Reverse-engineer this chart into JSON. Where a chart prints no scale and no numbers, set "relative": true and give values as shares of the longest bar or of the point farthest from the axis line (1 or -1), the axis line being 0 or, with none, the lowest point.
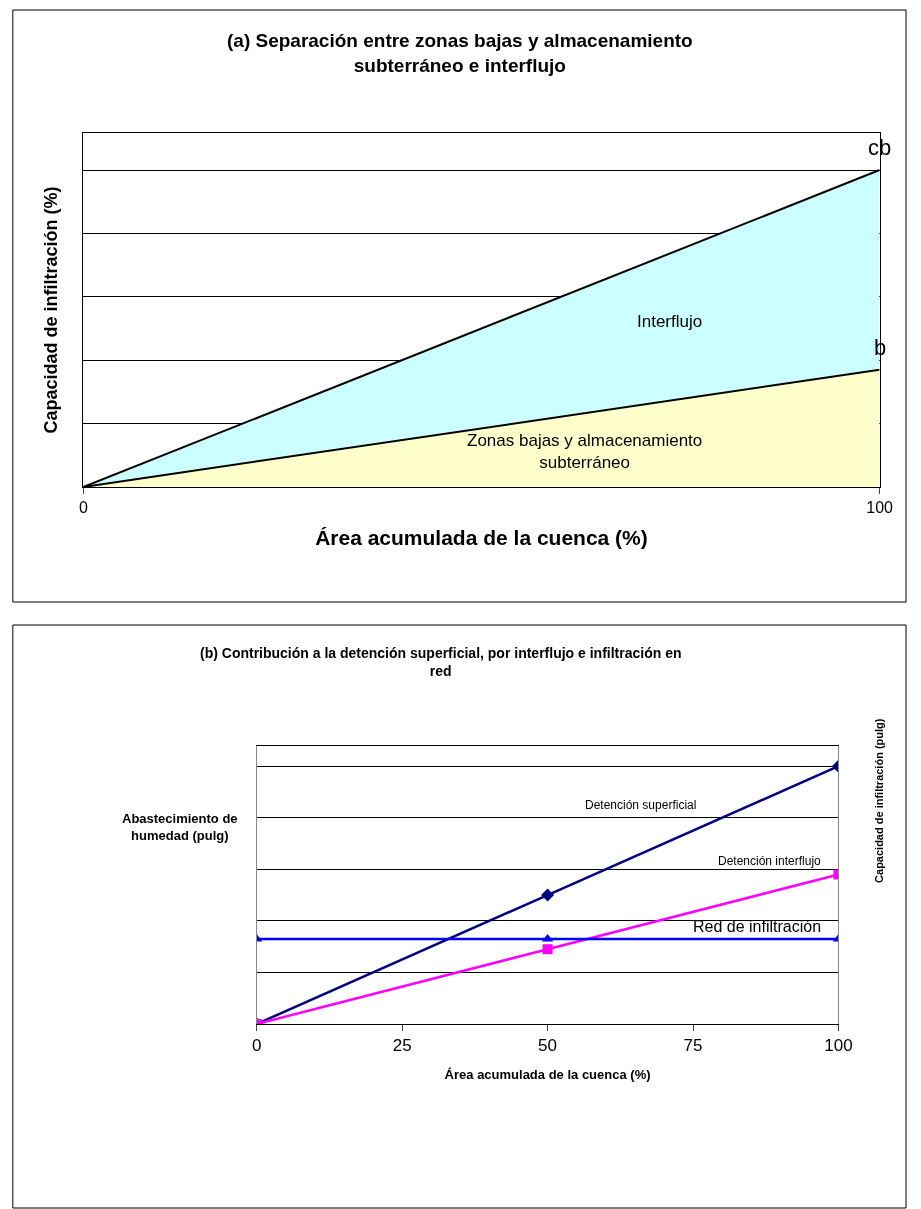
{
  "chart_data": [
    {
      "type": "area",
      "title": "(a) Separación entre zonas bajas y almacenamiento subterráneo e interflujo",
      "xlabel": "Área acumulada de la cuenca (%)",
      "ylabel": "Capacidad de infiltración (%)",
      "relative": true,
      "x": [
        0,
        100
      ],
      "xlim": [
        0,
        100
      ],
      "xticks": [
        0,
        100
      ],
      "grid": "y",
      "legend": false,
      "marker": "none",
      "series": [
        {
          "color": "#ffffcc",
          "values": [
            0,
            0.37
          ]
        },
        {
          "color": "#ccffff",
          "values": [
            0,
            1
          ]
        }
      ],
      "annotations": [
        {
          "text": "cb",
          "x": 100,
          "y": 1
        },
        {
          "text": "b",
          "x": 100,
          "y": 0.37
        },
        "Interflujo",
        "Zonas bajas y almacenamiento\nsubterráneo"
      ]
    },
    {
      "type": "line",
      "title": "(b) Contribución a la detención superficial, por interflujo e infiltración en red",
      "xlabel": "Área acumulada de la cuenca (%)",
      "ylabel": "Abastecimiento de\nhumedad (pulg)",
      "y2label": "Capacidad de infiltración (pulg)",
      "relative": true,
      "x": [
        0,
        50,
        100
      ],
      "xlim": [
        0,
        100
      ],
      "xticks": [
        0,
        25,
        50,
        75,
        100
      ],
      "grid": "y",
      "legend": false,
      "line_style": "solid",
      "series": [
        {
          "name": "Detención superficial",
          "color": "#000080",
          "marker": "diamond",
          "values": [
            0,
            0.5,
            1
          ]
        },
        {
          "name": "Detención interflujo",
          "color": "#ff00ff",
          "marker": "square",
          "values": [
            0,
            0.29,
            0.58
          ]
        },
        {
          "name": "Red de infiltración",
          "color": "#0000ff",
          "marker": "triangle",
          "values": [
            0.33,
            0.33,
            0.33
          ]
        }
      ]
    }
  ]
}
